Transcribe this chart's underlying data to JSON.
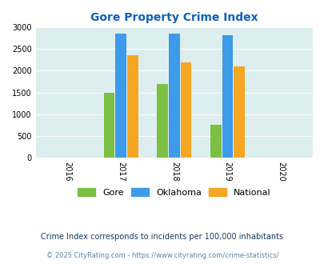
{
  "title": "Gore Property Crime Index",
  "title_color": "#1060bf",
  "years": [
    2016,
    2017,
    2018,
    2019,
    2020
  ],
  "categories": [
    "Gore",
    "Oklahoma",
    "National"
  ],
  "values": {
    "2017": [
      1490,
      2860,
      2360
    ],
    "2018": [
      1700,
      2860,
      2190
    ],
    "2019": [
      760,
      2830,
      2100
    ]
  },
  "bar_colors": [
    "#7bc043",
    "#3d9be9",
    "#f5a623"
  ],
  "ylim": [
    0,
    3000
  ],
  "yticks": [
    0,
    500,
    1000,
    1500,
    2000,
    2500,
    3000
  ],
  "plot_bg_color": "#ddeef0",
  "footer_note": "Crime Index corresponds to incidents per 100,000 inhabitants",
  "footer_copy": "© 2025 CityRating.com - https://www.cityrating.com/crime-statistics/",
  "legend_labels": [
    "Gore",
    "Oklahoma",
    "National"
  ],
  "bar_width": 0.22,
  "xlim": [
    2015.4,
    2020.6
  ],
  "tick_fontsize": 7,
  "title_fontsize": 10,
  "legend_fontsize": 8,
  "footer_fontsize": 7,
  "copy_fontsize": 6
}
